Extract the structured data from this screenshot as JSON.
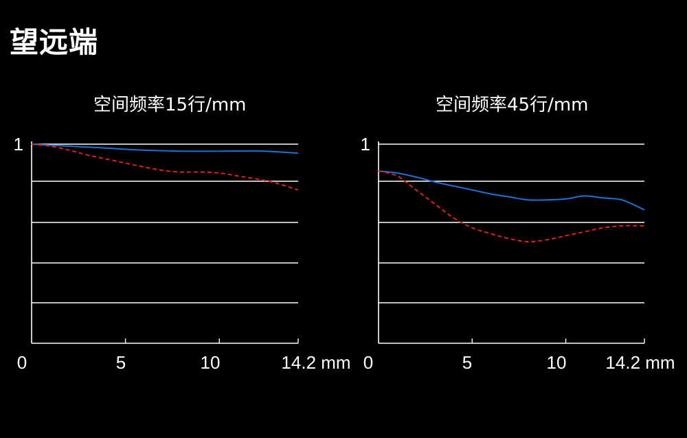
{
  "page": {
    "title": "望远端"
  },
  "chart_data": [
    {
      "type": "line",
      "title": "空间频率15行/mm",
      "x_tick_labels": [
        "0",
        "5",
        "10",
        "14.2 mm"
      ],
      "x_ticks": [
        0,
        5,
        10,
        14.2
      ],
      "y_tick_labels": [
        "1"
      ],
      "xlim": [
        0,
        14.2
      ],
      "ylim": [
        0,
        1
      ],
      "grid": true,
      "series": [
        {
          "style": "solid",
          "color": "#1a73d9",
          "x": [
            0,
            2,
            4,
            6,
            8,
            10,
            12,
            13,
            14.2
          ],
          "y": [
            1.0,
            0.99,
            0.98,
            0.97,
            0.965,
            0.965,
            0.966,
            0.962,
            0.955
          ]
        },
        {
          "style": "dashed",
          "color": "#e02020",
          "x": [
            0,
            1,
            2,
            3,
            4,
            5,
            6,
            7,
            8,
            9,
            10,
            11,
            12,
            13,
            14.2
          ],
          "y": [
            1.0,
            0.99,
            0.97,
            0.945,
            0.925,
            0.905,
            0.885,
            0.868,
            0.86,
            0.86,
            0.855,
            0.84,
            0.825,
            0.805,
            0.77
          ]
        }
      ]
    },
    {
      "type": "line",
      "title": "空间频率45行/mm",
      "x_tick_labels": [
        "0",
        "5",
        "10",
        "14.2 mm"
      ],
      "x_ticks": [
        0,
        5,
        10,
        14.2
      ],
      "y_tick_labels": [
        "1"
      ],
      "xlim": [
        0,
        14.2
      ],
      "ylim": [
        0,
        1
      ],
      "grid": true,
      "series": [
        {
          "style": "solid",
          "color": "#1a73d9",
          "x": [
            0,
            1,
            2,
            3,
            4,
            5,
            6,
            7,
            8,
            9,
            10,
            11,
            12,
            13,
            14.2
          ],
          "y": [
            0.865,
            0.855,
            0.835,
            0.81,
            0.79,
            0.77,
            0.75,
            0.735,
            0.72,
            0.72,
            0.725,
            0.74,
            0.73,
            0.72,
            0.67
          ]
        },
        {
          "style": "dashed",
          "color": "#e02020",
          "x": [
            0,
            1,
            2,
            3,
            4,
            5,
            6,
            7,
            8,
            9,
            10,
            11,
            12,
            13,
            14.2
          ],
          "y": [
            0.865,
            0.84,
            0.77,
            0.7,
            0.63,
            0.58,
            0.55,
            0.525,
            0.51,
            0.52,
            0.54,
            0.56,
            0.58,
            0.59,
            0.59
          ]
        }
      ]
    }
  ]
}
